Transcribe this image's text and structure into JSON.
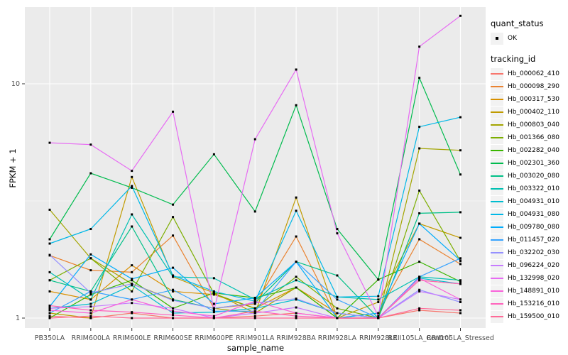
{
  "figure": {
    "bg": "#FFFFFF",
    "panel_bg": "#EBEBEB",
    "grid_color": "#FFFFFF",
    "tick_color": "#333333",
    "tick_label_color": "#4D4D4D"
  },
  "legend": {
    "quant_status_title": "quant_status",
    "quant_status_items": [
      {
        "label": "OK",
        "marker": "black-square-point"
      }
    ],
    "tracking_title": "tracking_id"
  },
  "chart_data": {
    "type": "line",
    "title": "",
    "xlabel": "sample_name",
    "ylabel": "FPKM + 1",
    "y_scale": "log10",
    "ylim": [
      0.91,
      23
    ],
    "yticks": [
      {
        "label": "1",
        "value": 1
      },
      {
        "label": "10",
        "value": 10
      }
    ],
    "y_minor": [
      3.1623
    ],
    "grid": true,
    "legend_position": "right",
    "point_marker": "small-black-square",
    "categories": [
      "PB350LA",
      "RRIM600LA",
      "RRIM600LE",
      "RRIM600SE",
      "RRIM600PE",
      "RRIM901LA",
      "RRIM928BA",
      "RRIM928LA",
      "RRIM928LE",
      "RRII105LA_Control",
      "RRII105LA_Stressed"
    ],
    "series": [
      {
        "name": "Hb_000062_410",
        "color": "#F8766D",
        "values": [
          1.02,
          1.0,
          1.05,
          1.0,
          1.0,
          1.02,
          1.05,
          1.0,
          1.0,
          1.08,
          1.05
        ]
      },
      {
        "name": "Hb_000098_290",
        "color": "#EA8331",
        "values": [
          1.85,
          1.6,
          1.57,
          2.25,
          1.1,
          1.15,
          2.23,
          1.0,
          1.05,
          2.17,
          1.7
        ]
      },
      {
        "name": "Hb_000317_530",
        "color": "#D89000",
        "values": [
          1.3,
          1.2,
          1.68,
          1.3,
          1.26,
          1.1,
          1.35,
          1.05,
          1.0,
          1.45,
          1.4
        ]
      },
      {
        "name": "Hb_000402_110",
        "color": "#C09B00",
        "values": [
          1.05,
          1.0,
          4.0,
          1.5,
          1.28,
          1.05,
          3.27,
          1.0,
          1.17,
          2.53,
          2.2
        ]
      },
      {
        "name": "Hb_000803_040",
        "color": "#A3A500",
        "values": [
          2.9,
          1.8,
          1.4,
          1.2,
          1.1,
          1.05,
          1.35,
          1.0,
          1.0,
          5.3,
          5.2
        ]
      },
      {
        "name": "Hb_001366_080",
        "color": "#7CAE00",
        "values": [
          1.45,
          1.8,
          1.3,
          2.7,
          1.27,
          1.1,
          1.5,
          1.1,
          1.0,
          3.5,
          1.75
        ]
      },
      {
        "name": "Hb_002282_040",
        "color": "#39B600",
        "values": [
          1.0,
          1.26,
          1.45,
          1.1,
          1.28,
          1.22,
          1.35,
          1.0,
          1.46,
          1.74,
          1.43
        ]
      },
      {
        "name": "Hb_002301_360",
        "color": "#00BB4E",
        "values": [
          2.17,
          4.15,
          3.6,
          3.05,
          5.0,
          2.85,
          8.1,
          2.4,
          1.46,
          10.6,
          4.1
        ]
      },
      {
        "name": "Hb_003020_080",
        "color": "#00C087",
        "values": [
          1.45,
          1.3,
          2.46,
          1.2,
          1.1,
          1.16,
          1.74,
          1.52,
          1.0,
          2.8,
          2.83
        ]
      },
      {
        "name": "Hb_003322_010",
        "color": "#00C0B2",
        "values": [
          1.57,
          1.2,
          2.77,
          1.5,
          1.48,
          1.2,
          1.45,
          1.23,
          1.2,
          1.5,
          1.45
        ]
      },
      {
        "name": "Hb_004931_010",
        "color": "#00BDD0",
        "values": [
          1.1,
          1.15,
          1.38,
          1.05,
          1.06,
          1.1,
          1.2,
          1.05,
          1.0,
          1.48,
          1.4
        ]
      },
      {
        "name": "Hb_004931_080",
        "color": "#00B8E7",
        "values": [
          2.08,
          2.4,
          3.66,
          1.52,
          1.3,
          1.18,
          2.87,
          1.23,
          1.24,
          6.55,
          7.2
        ]
      },
      {
        "name": "Hb_009780_080",
        "color": "#00ACFC",
        "values": [
          1.12,
          1.87,
          1.47,
          1.64,
          1.15,
          1.22,
          1.74,
          1.0,
          1.05,
          2.53,
          1.76
        ]
      },
      {
        "name": "Hb_011457_020",
        "color": "#35A2FF",
        "values": [
          1.05,
          1.3,
          1.2,
          1.32,
          1.07,
          1.07,
          1.74,
          1.2,
          1.0,
          1.5,
          1.8
        ]
      },
      {
        "name": "Hb_032202_030",
        "color": "#9590FF",
        "values": [
          1.86,
          1.28,
          1.4,
          1.19,
          1.1,
          1.16,
          1.21,
          1.05,
          1.0,
          1.32,
          1.17
        ]
      },
      {
        "name": "Hb_096224_020",
        "color": "#C77CFF",
        "values": [
          1.1,
          1.12,
          1.16,
          1.1,
          1.0,
          1.05,
          1.11,
          1.0,
          1.0,
          1.3,
          1.2
        ]
      },
      {
        "name": "Hb_132998_020",
        "color": "#E76BF3",
        "values": [
          5.6,
          5.5,
          4.25,
          7.6,
          1.08,
          5.8,
          11.5,
          2.3,
          1.02,
          14.4,
          19.5
        ]
      },
      {
        "name": "Hb_148891_010",
        "color": "#FA62DB",
        "values": [
          1.08,
          1.05,
          1.2,
          1.07,
          1.02,
          1.18,
          1.05,
          1.0,
          1.0,
          1.48,
          1.2
        ]
      },
      {
        "name": "Hb_153216_010",
        "color": "#FF62BC",
        "values": [
          1.13,
          1.08,
          1.06,
          1.03,
          1.0,
          1.07,
          1.02,
          1.0,
          1.0,
          1.45,
          1.4
        ]
      },
      {
        "name": "Hb_159500_010",
        "color": "#FF6A98",
        "values": [
          1.0,
          1.02,
          1.0,
          1.0,
          1.0,
          1.0,
          1.0,
          1.0,
          1.0,
          1.1,
          1.08
        ]
      }
    ]
  }
}
